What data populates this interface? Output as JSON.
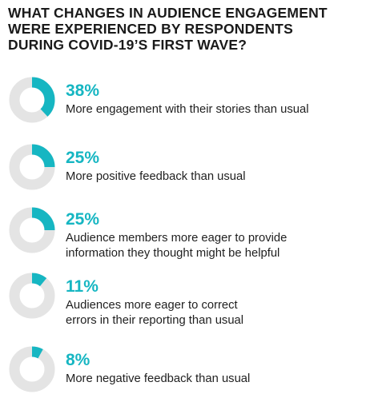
{
  "colors": {
    "accent": "#16b6c2",
    "track": "#e4e4e4",
    "text": "#1f1f1f"
  },
  "chart_data": {
    "type": "donut",
    "title_lines": [
      "WHAT CHANGES IN AUDIENCE ENGAGEMENT",
      "WERE EXPERIENCED BY RESPONDENTS",
      "DURING COVID-19’S FIRST WAVE?"
    ],
    "items": [
      {
        "value": 38,
        "label": "38%",
        "lines": [
          "More engagement with their stories than usual"
        ]
      },
      {
        "value": 25,
        "label": "25%",
        "lines": [
          "More positive feedback than usual"
        ]
      },
      {
        "value": 25,
        "label": "25%",
        "lines": [
          "Audience members more eager to provide",
          "information they thought might be helpful"
        ]
      },
      {
        "value": 11,
        "label": "11%",
        "lines": [
          "Audiences more eager to correct",
          "errors in their reporting than usual"
        ]
      },
      {
        "value": 8,
        "label": "8%",
        "lines": [
          "More negative feedback than usual"
        ]
      }
    ]
  }
}
